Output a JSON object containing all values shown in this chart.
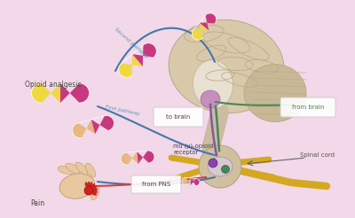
{
  "bg_color": "#f2d8e8",
  "labels": {
    "opioid_analgesic": "Opioid analgesic",
    "second_pathway": "Second pathway",
    "first_pathway": "First pathway",
    "to_brain": "to brain",
    "from_brain": "from brain",
    "mu_receptor": "mu (μ)-opioid\nreceptor",
    "from_pns": "from PNS",
    "spinal_cord": "Spinal cord",
    "pain": "Pain"
  },
  "label_colors": {
    "opioid_analgesic": "#444444",
    "second_pathway": "#5599bb",
    "first_pathway": "#5599bb",
    "to_brain": "#444444",
    "from_brain": "#448855",
    "mu_receptor": "#444444",
    "from_pns": "#444444",
    "spinal_cord": "#555555",
    "pain": "#444444"
  },
  "blue_path": "#4477aa",
  "green_path": "#44885a",
  "purple_path": "#8855aa",
  "brain_color": "#d8c9aa",
  "brain_inner_color": "#c0b090",
  "brain_stem_color": "#cbbda0",
  "cerebellum_color": "#c8b896",
  "limbic_color": "#c080b8",
  "spinal_outer": "#d0c0a0",
  "spinal_inner": "#d8c8d0",
  "nerve_yellow": "#d4a820",
  "hand_color": "#e8c8a0",
  "hand_edge": "#c09870",
  "pain_red": "#cc2222",
  "capsule_yellow": "#f0d840",
  "capsule_pink": "#c83880",
  "capsule_tan": "#e8b880",
  "white_box": "#ffffff"
}
